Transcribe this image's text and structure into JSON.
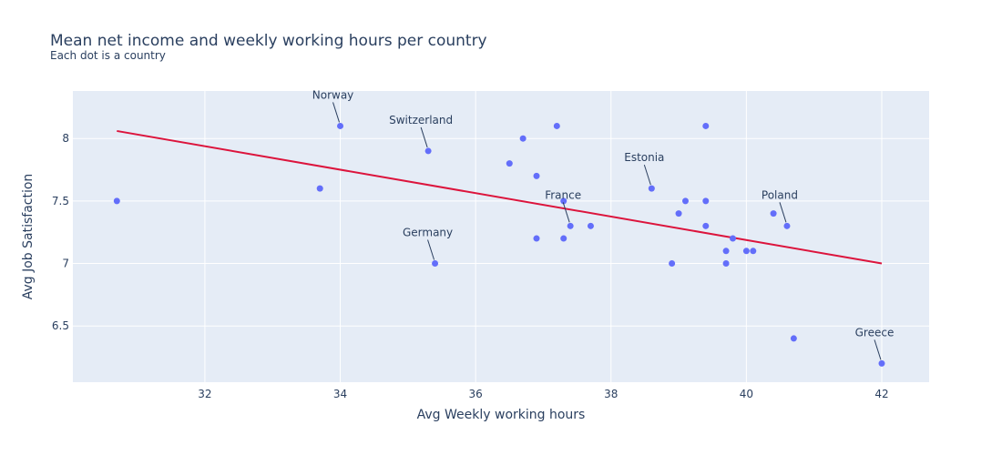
{
  "chart_data": {
    "type": "scatter",
    "title": "Mean net income and weekly working hours per country",
    "subtitle": "Each dot is a country",
    "xlabel": "Avg Weekly working hours",
    "ylabel": "Avg Job Satisfaction",
    "xlim": [
      30.05,
      42.7
    ],
    "ylim": [
      6.05,
      8.38
    ],
    "xticks": [
      32,
      34,
      36,
      38,
      40,
      42
    ],
    "yticks": [
      6.5,
      7,
      7.5,
      8
    ],
    "ytick_labels": [
      "6.5",
      "7",
      "7.5",
      "8"
    ],
    "grid": true,
    "background": "#e5ecf6",
    "marker_color": "#636efa",
    "trend_color": "#dc143c",
    "points": [
      {
        "x": 30.7,
        "y": 7.5
      },
      {
        "x": 33.7,
        "y": 7.6
      },
      {
        "x": 34.0,
        "y": 8.1
      },
      {
        "x": 35.3,
        "y": 7.9
      },
      {
        "x": 35.4,
        "y": 7.0
      },
      {
        "x": 36.5,
        "y": 7.8
      },
      {
        "x": 36.7,
        "y": 8.0
      },
      {
        "x": 36.9,
        "y": 7.7
      },
      {
        "x": 36.9,
        "y": 7.2
      },
      {
        "x": 37.2,
        "y": 8.1
      },
      {
        "x": 37.3,
        "y": 7.5
      },
      {
        "x": 37.3,
        "y": 7.2
      },
      {
        "x": 37.4,
        "y": 7.3
      },
      {
        "x": 37.7,
        "y": 7.3
      },
      {
        "x": 38.6,
        "y": 7.6
      },
      {
        "x": 38.9,
        "y": 7.0
      },
      {
        "x": 39.0,
        "y": 7.4
      },
      {
        "x": 39.1,
        "y": 7.5
      },
      {
        "x": 39.4,
        "y": 8.1
      },
      {
        "x": 39.4,
        "y": 7.5
      },
      {
        "x": 39.4,
        "y": 7.3
      },
      {
        "x": 39.7,
        "y": 7.1
      },
      {
        "x": 39.7,
        "y": 7.0
      },
      {
        "x": 39.8,
        "y": 7.2
      },
      {
        "x": 40.0,
        "y": 7.1
      },
      {
        "x": 40.1,
        "y": 7.1
      },
      {
        "x": 40.4,
        "y": 7.4
      },
      {
        "x": 40.6,
        "y": 7.3
      },
      {
        "x": 40.7,
        "y": 6.4
      },
      {
        "x": 42.0,
        "y": 6.2
      }
    ],
    "trendline": {
      "x": [
        30.7,
        42.0
      ],
      "y": [
        8.06,
        7.0
      ]
    },
    "annotations": [
      {
        "text": "Norway",
        "x": 34.0,
        "y": 8.1
      },
      {
        "text": "Switzerland",
        "x": 35.3,
        "y": 7.9
      },
      {
        "text": "Estonia",
        "x": 38.6,
        "y": 7.6
      },
      {
        "text": "France",
        "x": 37.4,
        "y": 7.3
      },
      {
        "text": "Germany",
        "x": 35.4,
        "y": 7.0
      },
      {
        "text": "Poland",
        "x": 40.6,
        "y": 7.3
      },
      {
        "text": "Greece",
        "x": 42.0,
        "y": 6.2
      }
    ]
  }
}
